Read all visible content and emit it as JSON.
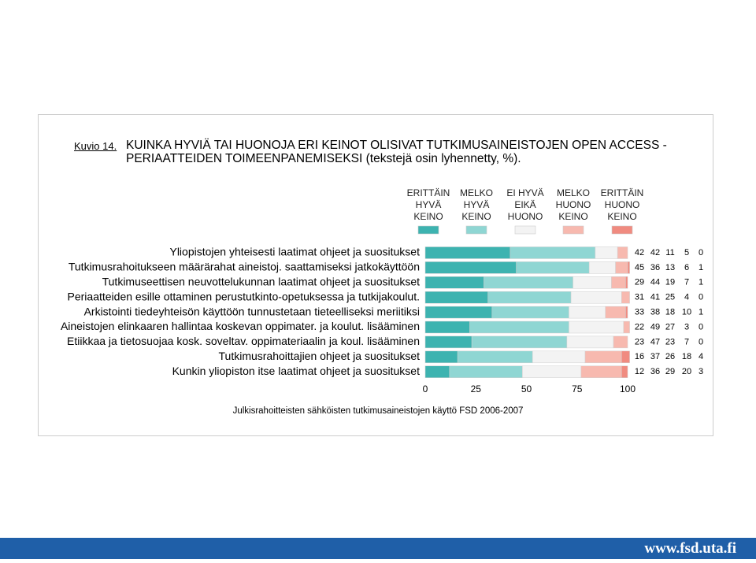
{
  "figure_label": "Kuvio 14.",
  "footer_url": "www.fsd.uta.fi",
  "chart_data": {
    "type": "stacked_bar",
    "title": "KUINKA HYVIÄ TAI HUONOJA ERI KEINOT OLISIVAT TUTKIMUSAINEISTOJEN OPEN ACCESS -PERIAATTEIDEN TOIMEENPANEMISEKSI (tekstejä osin lyhennetty, %).",
    "note": "Julkisrahoitteisten sähköisten tutkimusaineistojen käyttö FSD 2006-2007",
    "categories": [
      "Yliopistojen yhteisesti laatimat ohjeet ja suositukset",
      "Tutkimusrahoitukseen määrärahat aineistoj. saattamiseksi jatkokäyttöön",
      "Tutkimuseettisen neuvottelukunnan laatimat ohjeet ja suositukset",
      "Periaatteiden esille ottaminen perustutkinto-opetuksessa ja tutkijakoulut.",
      "Arkistointi tiedeyhteisön käyttöön tunnustetaan tieteelliseksi meriitiksi",
      "Aineistojen elinkaaren hallintaa koskevan oppimater. ja koulut. lisääminen",
      "Etiikkaa ja tietosuojaa kosk. soveltav. oppimateriaalin ja koul. lisääminen",
      "Tutkimusrahoittajien ohjeet ja suositukset",
      "Kunkin yliopiston itse laatimat ohjeet ja suositukset"
    ],
    "series": [
      {
        "name": "ERITTÄIN HYVÄ KEINO",
        "color": "#3db3b0",
        "values": [
          42,
          45,
          29,
          31,
          33,
          22,
          23,
          16,
          12
        ]
      },
      {
        "name": "MELKO HYVÄ KEINO",
        "color": "#8fd6d3",
        "values": [
          42,
          36,
          44,
          41,
          38,
          49,
          47,
          37,
          36
        ]
      },
      {
        "name": "EI HYVÄ EIKÄ HUONO",
        "color": "#f3f3f3",
        "values": [
          11,
          13,
          19,
          25,
          18,
          27,
          23,
          26,
          29
        ]
      },
      {
        "name": "MELKO HUONO KEINO",
        "color": "#f7b9af",
        "values": [
          5,
          6,
          7,
          4,
          10,
          3,
          7,
          18,
          20
        ]
      },
      {
        "name": "ERITTÄIN HUONO KEINO",
        "color": "#f08b80",
        "values": [
          0,
          1,
          1,
          0,
          1,
          0,
          0,
          4,
          3
        ]
      }
    ],
    "xlim": [
      0,
      100
    ],
    "xticks": [
      0,
      25,
      50,
      75,
      100
    ]
  }
}
